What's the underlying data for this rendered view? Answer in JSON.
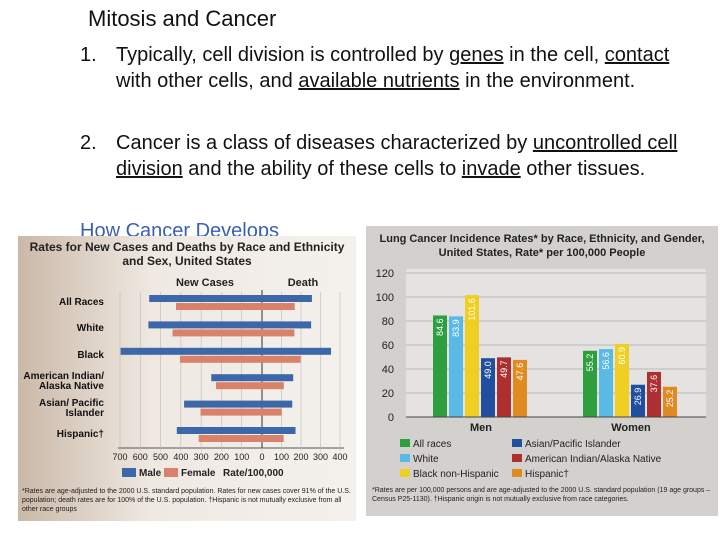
{
  "slide": {
    "title": "Mitosis and Cancer",
    "items": [
      {
        "number": "1.",
        "segments": [
          {
            "text": "Typically, cell division is controlled by ",
            "underline": false
          },
          {
            "text": "genes",
            "underline": true
          },
          {
            "text": " in the cell, ",
            "underline": false
          },
          {
            "text": "contact",
            "underline": true
          },
          {
            "text": " with other cells, and ",
            "underline": false
          },
          {
            "text": "available nutrients",
            "underline": true
          },
          {
            "text": " in the environment.",
            "underline": false
          }
        ]
      },
      {
        "number": "2.",
        "segments": [
          {
            "text": "Cancer is a class of diseases characterized by ",
            "underline": false
          },
          {
            "text": "uncontrolled cell division",
            "underline": true
          },
          {
            "text": " and the ability of these cells to ",
            "underline": false
          },
          {
            "text": "invade",
            "underline": true
          },
          {
            "text": " other tissues.",
            "underline": false
          }
        ]
      }
    ],
    "link": "How Cancer Develops"
  },
  "chart_data": [
    {
      "type": "mirrored-bar",
      "title": "Rates for New Cases and Deaths by Race and Ethnicity and Sex, United States",
      "left_label": "New Cases",
      "right_label": "Death",
      "categories": [
        "All Races",
        "White",
        "Black",
        "American Indian/ Alaska Native",
        "Asian/ Pacific Islander",
        "Hispanic†"
      ],
      "series": [
        {
          "name": "Male",
          "color": "#3c67a9",
          "new_cases": [
            556,
            560,
            697,
            250,
            384,
            420
          ],
          "deaths": [
            256,
            252,
            354,
            160,
            155,
            172
          ]
        },
        {
          "name": "Female",
          "color": "#d9826a",
          "new_cases": [
            424,
            441,
            404,
            227,
            303,
            312
          ],
          "deaths": [
            168,
            166,
            198,
            112,
            101,
            111
          ]
        }
      ],
      "new_cases_xlim": [
        700,
        0
      ],
      "new_cases_xticks": [
        700,
        600,
        500,
        400,
        300,
        200,
        100,
        0
      ],
      "death_xlim": [
        0,
        400
      ],
      "death_xticks": [
        100,
        200,
        300,
        400
      ],
      "xlabel": "Rate/100,000",
      "footnote": "*Rates are age-adjusted to the 2000 U.S. standard population. Rates for new cases cover 91% of the U.S. population; death rates are for 100% of the U.S. population. †Hispanic is not mutually exclusive from all other race groups"
    },
    {
      "type": "grouped-bar",
      "title": "Lung Cancer Incidence Rates* by Race, Ethnicity, and Gender, United States, Rate* per 100,000 People",
      "categories": [
        "Men",
        "Women"
      ],
      "series": [
        {
          "name": "All races",
          "color": "#2f9e3f",
          "values": [
            84.6,
            55.2
          ]
        },
        {
          "name": "White",
          "color": "#5bb9e6",
          "values": [
            83.9,
            56.6
          ]
        },
        {
          "name": "Black non-Hispanic",
          "color": "#f0cf22",
          "values": [
            101.6,
            60.9
          ]
        },
        {
          "name": "Asian/Pacific Islander",
          "color": "#1f4f9e",
          "values": [
            49,
            26.9
          ],
          "value_labels": [
            "49.0",
            "26.9"
          ]
        },
        {
          "name": "American Indian/Alaska Native",
          "color": "#ae2f2f",
          "values": [
            49.7,
            37.6
          ]
        },
        {
          "name": "Hispanic†",
          "color": "#e08a22",
          "values": [
            47.6,
            25.2
          ]
        }
      ],
      "ylim": [
        0,
        120
      ],
      "yticks": [
        0,
        20,
        40,
        60,
        80,
        100,
        120
      ],
      "grid": true,
      "footnote": "*Rates are per 100,000 persons and are age-adjusted to the 2000 U.S. standard population (19 age groups – Census P25-1130). †Hispanic origin is not mutually exclusive from race categories."
    }
  ]
}
